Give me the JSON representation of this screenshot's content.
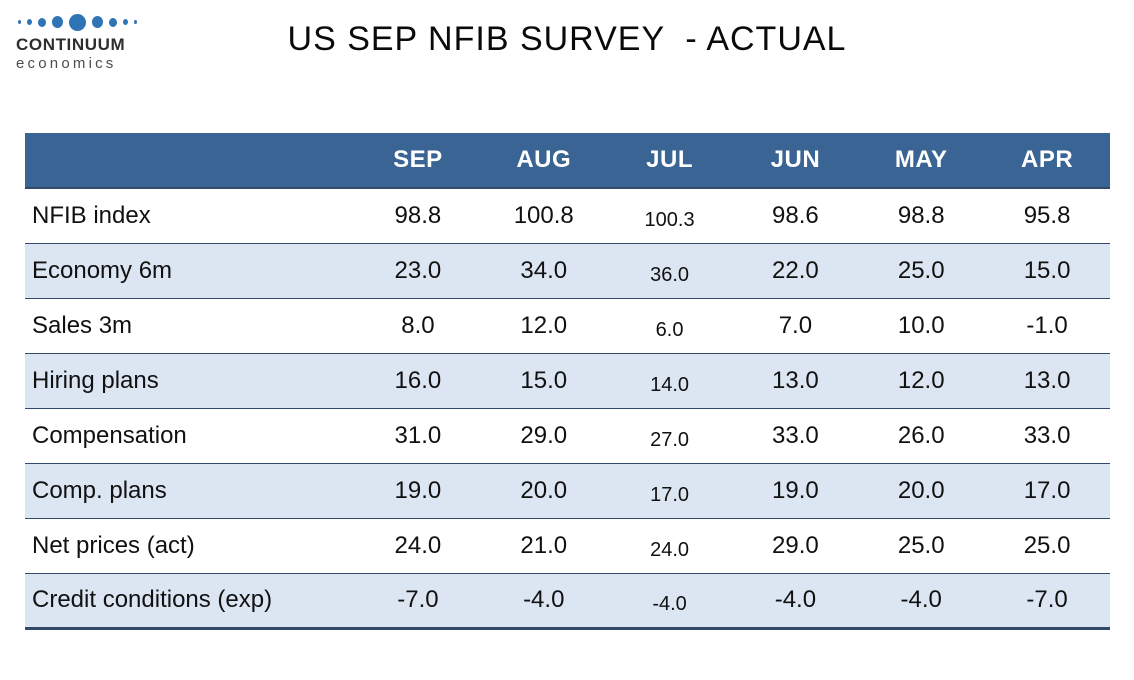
{
  "logo": {
    "brand": "CONTINUUM",
    "sub": "economics"
  },
  "title": "US SEP NFIB SURVEY  - ACTUAL",
  "colors": {
    "header_bg": "#3A6494",
    "band_bg": "#DCE6F2",
    "border": "#33496B",
    "dot_blue": "#2F74B5",
    "brand_text": "#2E2E2E",
    "sub_text": "#4D4D4D"
  },
  "chart_data": {
    "type": "table",
    "title": "US SEP NFIB SURVEY  - ACTUAL",
    "columns": [
      "SEP",
      "AUG",
      "JUL",
      "JUN",
      "MAY",
      "APR"
    ],
    "rows": [
      {
        "label": "NFIB index",
        "values": [
          "98.8",
          "100.8",
          "100.3",
          "98.6",
          "98.8",
          "95.8"
        ]
      },
      {
        "label": "Economy 6m",
        "values": [
          "23.0",
          "34.0",
          "36.0",
          "22.0",
          "25.0",
          "15.0"
        ]
      },
      {
        "label": "Sales 3m",
        "values": [
          "8.0",
          "12.0",
          "6.0",
          "7.0",
          "10.0",
          "-1.0"
        ]
      },
      {
        "label": "Hiring plans",
        "values": [
          "16.0",
          "15.0",
          "14.0",
          "13.0",
          "12.0",
          "13.0"
        ]
      },
      {
        "label": "Compensation",
        "values": [
          "31.0",
          "29.0",
          "27.0",
          "33.0",
          "26.0",
          "33.0"
        ]
      },
      {
        "label": "Comp. plans",
        "values": [
          "19.0",
          "20.0",
          "17.0",
          "19.0",
          "20.0",
          "17.0"
        ]
      },
      {
        "label": "Net prices (act)",
        "values": [
          "24.0",
          "21.0",
          "24.0",
          "29.0",
          "25.0",
          "25.0"
        ]
      },
      {
        "label": "Credit conditions (exp)",
        "values": [
          "-7.0",
          "-4.0",
          "-4.0",
          "-4.0",
          "-4.0",
          "-7.0"
        ]
      }
    ]
  }
}
